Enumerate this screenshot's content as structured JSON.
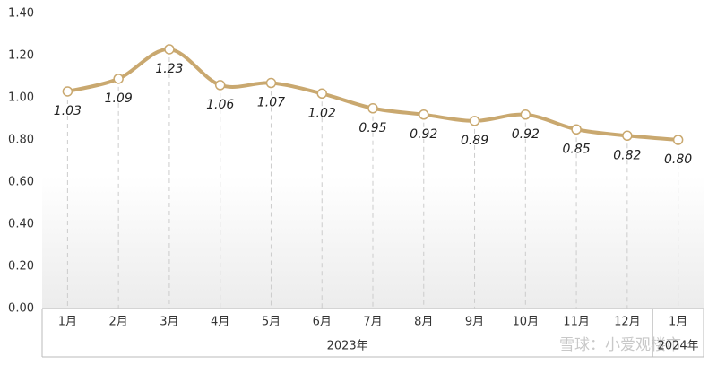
{
  "chart_data": {
    "type": "line",
    "category_groups": [
      {
        "label": "2023年",
        "categories": [
          "1月",
          "2月",
          "3月",
          "4月",
          "5月",
          "6月",
          "7月",
          "8月",
          "9月",
          "10月",
          "11月",
          "12月"
        ]
      },
      {
        "label": "2024年",
        "categories": [
          "1月"
        ]
      }
    ],
    "values": [
      1.03,
      1.09,
      1.23,
      1.06,
      1.07,
      1.02,
      0.95,
      0.92,
      0.89,
      0.92,
      0.85,
      0.82,
      0.8
    ],
    "value_labels": [
      "1.03",
      "1.09",
      "1.23",
      "1.06",
      "1.07",
      "1.02",
      "0.95",
      "0.92",
      "0.89",
      "0.92",
      "0.85",
      "0.82",
      "0.80"
    ],
    "color": "#c9a86f",
    "ylim": [
      0,
      1.4
    ],
    "yticks": [
      {
        "value": 0,
        "label": "0.00"
      },
      {
        "value": 0.2,
        "label": "0.20"
      },
      {
        "value": 0.4,
        "label": "0.40"
      },
      {
        "value": 0.6,
        "label": "0.60"
      },
      {
        "value": 0.8,
        "label": "0.80"
      },
      {
        "value": 1,
        "label": "1.00"
      },
      {
        "value": 1.2,
        "label": "1.20"
      },
      {
        "value": 1.4,
        "label": "1.40"
      }
    ],
    "watermark": "雪球：小爱观楼市"
  }
}
